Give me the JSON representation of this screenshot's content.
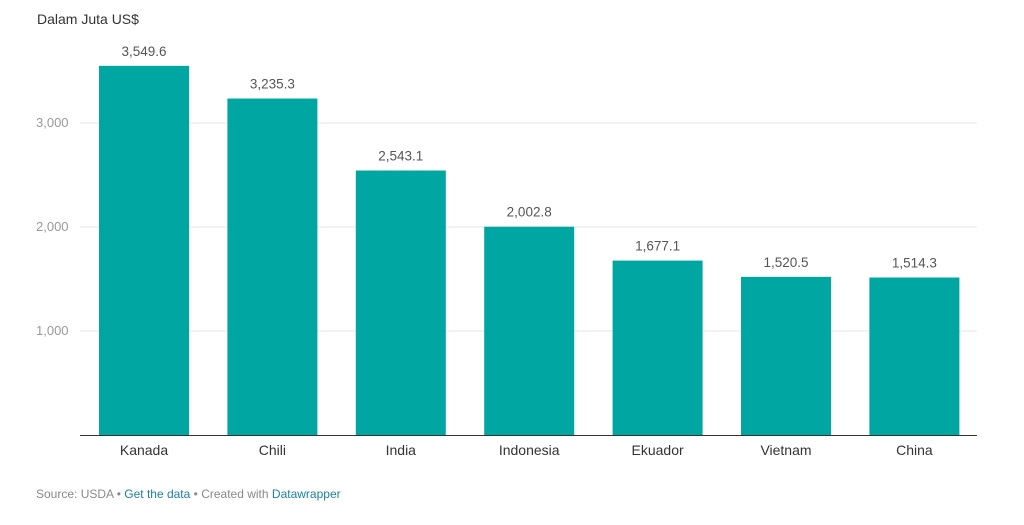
{
  "chart_data": {
    "type": "bar",
    "title": "",
    "ylabel": "Dalam Juta US$",
    "xlabel": "",
    "categories": [
      "Kanada",
      "Chili",
      "India",
      "Indonesia",
      "Ekuador",
      "Vietnam",
      "China"
    ],
    "values": [
      3549.6,
      3235.3,
      2543.1,
      2002.8,
      1677.1,
      1520.5,
      1514.3
    ],
    "value_labels": [
      "3,549.6",
      "3,235.3",
      "2,543.1",
      "2,002.8",
      "1,677.1",
      "1,520.5",
      "1,514.3"
    ],
    "yticks": [
      1000,
      2000,
      3000
    ],
    "ytick_labels": [
      "1,000",
      "2,000",
      "3,000"
    ],
    "ylim": [
      0,
      3700
    ],
    "grid": true,
    "legend": "none",
    "colors": {
      "bar": "#00a6a2",
      "grid": "#e6e6e6",
      "axis": "#333333"
    }
  },
  "footer": {
    "source": "Source: USDA",
    "sep1": "•",
    "get_data": "Get the data",
    "sep2": "•",
    "created_with": "Created with",
    "datawrapper": "Datawrapper"
  }
}
